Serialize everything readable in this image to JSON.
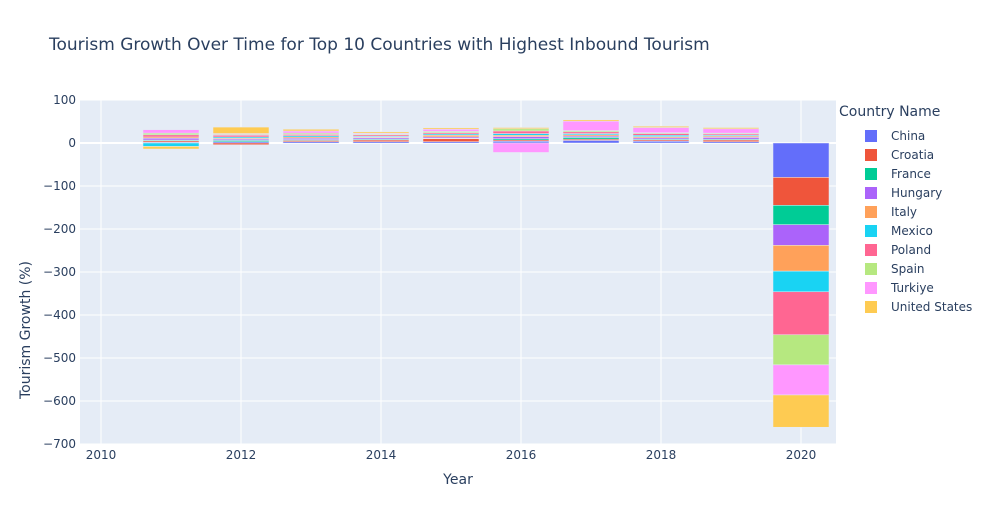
{
  "chart_data": {
    "type": "bar",
    "barmode": "relative",
    "title": "Tourism Growth Over Time for Top 10 Countries with Highest Inbound Tourism",
    "xlabel": "Year",
    "ylabel": "Tourism Growth (%)",
    "legend_title": "Country Name",
    "legend_position": "right",
    "grid": true,
    "x": [
      2010,
      2011,
      2012,
      2013,
      2014,
      2015,
      2016,
      2017,
      2018,
      2019,
      2020
    ],
    "x_tick_labels": [
      "2010",
      "2012",
      "2014",
      "2016",
      "2018",
      "2020"
    ],
    "x_tick_values": [
      2010,
      2012,
      2014,
      2016,
      2018,
      2020
    ],
    "xlim": [
      2009.7,
      2020.5
    ],
    "y_tick_labels": [
      "100",
      "0",
      "−100",
      "−200",
      "−300",
      "−400",
      "−500",
      "−600",
      "−700"
    ],
    "y_tick_values": [
      100,
      0,
      -100,
      -200,
      -300,
      -400,
      -500,
      -600,
      -700
    ],
    "ylim": [
      -700,
      100
    ],
    "series": [
      {
        "name": "China",
        "color": "#636efa",
        "values": [
          null,
          2,
          3,
          3,
          3,
          3,
          4,
          6,
          4,
          3,
          -80
        ]
      },
      {
        "name": "Croatia",
        "color": "#ef553b",
        "values": [
          null,
          3,
          -4,
          3,
          4,
          7,
          3,
          3,
          3,
          4,
          -65
        ]
      },
      {
        "name": "France",
        "color": "#00cc96",
        "values": [
          null,
          2,
          3,
          2,
          2,
          1,
          3,
          4,
          2,
          2,
          -45
        ]
      },
      {
        "name": "Hungary",
        "color": "#ab63fa",
        "values": [
          null,
          4,
          3,
          3,
          3,
          3,
          5,
          3,
          3,
          4,
          -48
        ]
      },
      {
        "name": "Italy",
        "color": "#ffa15a",
        "values": [
          null,
          3,
          2,
          3,
          2,
          4,
          3,
          3,
          3,
          3,
          -60
        ]
      },
      {
        "name": "Mexico",
        "color": "#19d3f3",
        "values": [
          null,
          -8,
          3,
          3,
          2,
          3,
          4,
          3,
          3,
          2,
          -48
        ]
      },
      {
        "name": "Poland",
        "color": "#ff6692",
        "values": [
          null,
          5,
          4,
          3,
          3,
          3,
          6,
          4,
          4,
          3,
          -100
        ]
      },
      {
        "name": "Spain",
        "color": "#b6e880",
        "values": [
          null,
          4,
          2,
          3,
          2,
          3,
          5,
          3,
          2,
          2,
          -70
        ]
      },
      {
        "name": "Turkiye",
        "color": "#ff97ff",
        "values": [
          null,
          8,
          2,
          5,
          2,
          5,
          -22,
          22,
          12,
          10,
          -70
        ]
      },
      {
        "name": "United States",
        "color": "#fecb52",
        "values": [
          null,
          -6,
          15,
          4,
          3,
          3,
          3,
          3,
          3,
          3,
          -75
        ]
      }
    ]
  }
}
